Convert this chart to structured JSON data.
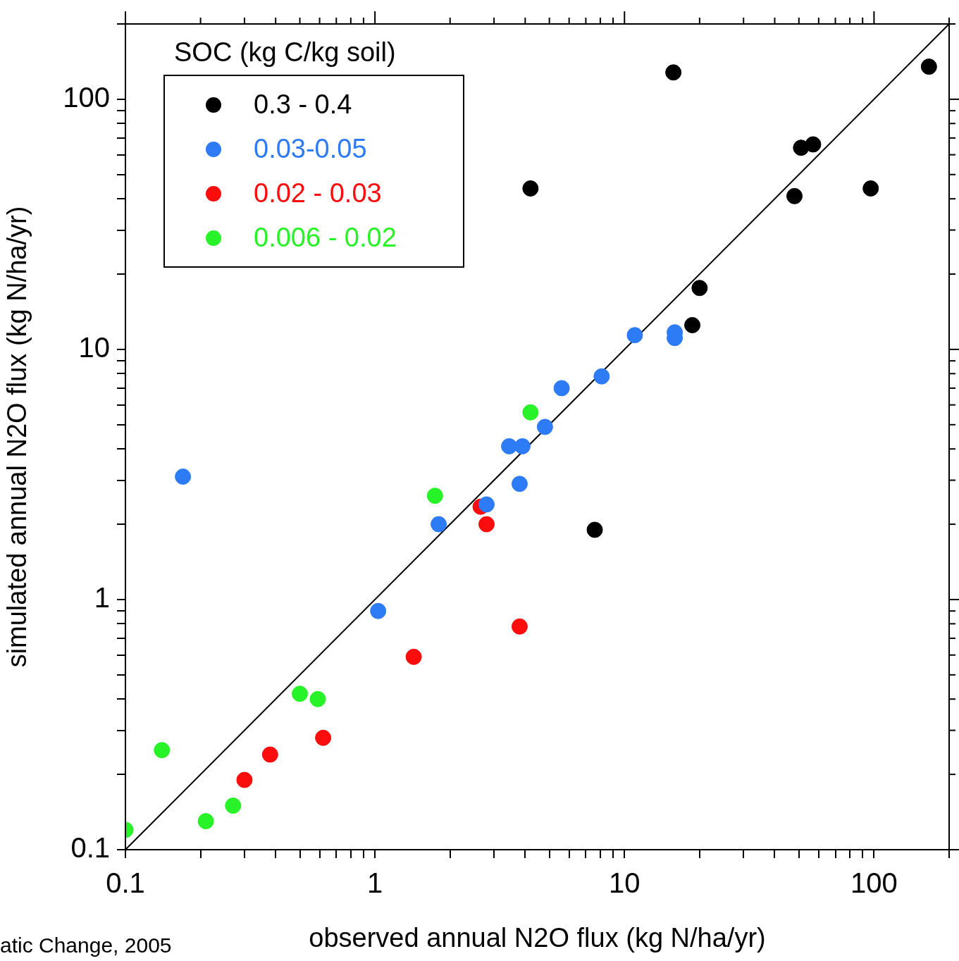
{
  "chart_data": {
    "type": "scatter",
    "xlabel": "observed annual N2O flux (kg N/ha/yr)",
    "ylabel": "simulated annual N2O flux (kg N/ha/yr)",
    "legend_title": "SOC (kg C/kg soil)",
    "legend": "top left",
    "log": "xy",
    "grid": false,
    "marker": "circle",
    "xlim": [
      0.1,
      200
    ],
    "ylim": [
      0.1,
      200
    ],
    "xticks": [
      0.1,
      {
        "value": 0.2,
        "label": null
      },
      {
        "value": 0.3,
        "label": null
      },
      {
        "value": 0.4,
        "label": null
      },
      {
        "value": 0.5,
        "label": null
      },
      {
        "value": 0.6,
        "label": null
      },
      {
        "value": 0.7,
        "label": null
      },
      {
        "value": 0.8,
        "label": null
      },
      {
        "value": 0.9,
        "label": null
      },
      1,
      {
        "value": 2,
        "label": null
      },
      {
        "value": 3,
        "label": null
      },
      {
        "value": 4,
        "label": null
      },
      {
        "value": 5,
        "label": null
      },
      {
        "value": 6,
        "label": null
      },
      {
        "value": 7,
        "label": null
      },
      {
        "value": 8,
        "label": null
      },
      {
        "value": 9,
        "label": null
      },
      10,
      {
        "value": 20,
        "label": null
      },
      {
        "value": 30,
        "label": null
      },
      {
        "value": 40,
        "label": null
      },
      {
        "value": 50,
        "label": null
      },
      {
        "value": 60,
        "label": null
      },
      {
        "value": 70,
        "label": null
      },
      {
        "value": 80,
        "label": null
      },
      {
        "value": 90,
        "label": null
      },
      100,
      {
        "value": 200,
        "label": null
      }
    ],
    "yticks": [
      0.1,
      {
        "value": 0.2,
        "label": null
      },
      {
        "value": 0.3,
        "label": null
      },
      {
        "value": 0.4,
        "label": null
      },
      {
        "value": 0.5,
        "label": null
      },
      {
        "value": 0.6,
        "label": null
      },
      {
        "value": 0.7,
        "label": null
      },
      {
        "value": 0.8,
        "label": null
      },
      {
        "value": 0.9,
        "label": null
      },
      1,
      {
        "value": 2,
        "label": null
      },
      {
        "value": 3,
        "label": null
      },
      {
        "value": 4,
        "label": null
      },
      {
        "value": 5,
        "label": null
      },
      {
        "value": 6,
        "label": null
      },
      {
        "value": 7,
        "label": null
      },
      {
        "value": 8,
        "label": null
      },
      {
        "value": 9,
        "label": null
      },
      10,
      {
        "value": 20,
        "label": null
      },
      {
        "value": 30,
        "label": null
      },
      {
        "value": 40,
        "label": null
      },
      {
        "value": 50,
        "label": null
      },
      {
        "value": 60,
        "label": null
      },
      {
        "value": 70,
        "label": null
      },
      {
        "value": 80,
        "label": null
      },
      {
        "value": 90,
        "label": null
      },
      100,
      {
        "value": 200,
        "label": null
      }
    ],
    "series": [
      {
        "name": "0.3 - 0.4",
        "color": "#000000",
        "x": [
          15.7,
          166,
          51,
          57,
          4.2,
          48,
          97,
          20,
          18.7,
          7.6
        ],
        "values": [
          128,
          135,
          64,
          66,
          44,
          41,
          44,
          17.6,
          12.5,
          1.9
        ]
      },
      {
        "name": "0.03-0.05",
        "color": "#2e7bf6",
        "x": [
          0.17,
          11,
          15.9,
          15.9,
          8.1,
          5.6,
          4.8,
          3.45,
          3.9,
          3.8,
          2.8,
          1.8,
          1.03
        ],
        "values": [
          3.1,
          11.4,
          11.7,
          11.1,
          7.8,
          7.0,
          4.9,
          4.1,
          4.1,
          2.9,
          2.4,
          2.0,
          0.9
        ]
      },
      {
        "name": "0.02 - 0.03",
        "color": "#fb0d0d",
        "x": [
          2.65,
          2.8,
          3.8,
          1.43,
          0.62,
          0.38,
          0.3
        ],
        "values": [
          2.35,
          2.0,
          0.78,
          0.59,
          0.28,
          0.24,
          0.19
        ]
      },
      {
        "name": "0.006 - 0.02",
        "color": "#28f228",
        "x": [
          4.2,
          1.74,
          0.5,
          0.59,
          0.14,
          0.27,
          0.21,
          0.1
        ],
        "values": [
          5.6,
          2.6,
          0.42,
          0.4,
          0.25,
          0.15,
          0.13,
          0.12
        ]
      },
      {
        "type": "line",
        "color": "#000000",
        "marker": "none",
        "x": [
          0.1,
          200
        ],
        "values": [
          0.1,
          200
        ]
      }
    ],
    "annotations": [
      "atic Change, 2005"
    ]
  }
}
